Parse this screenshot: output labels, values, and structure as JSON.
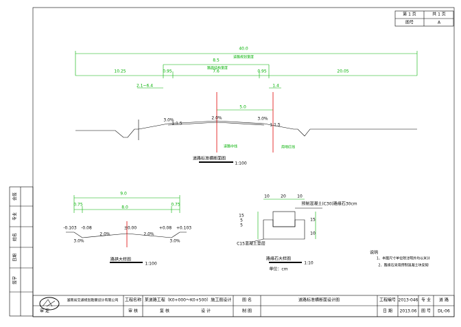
{
  "sheet": {
    "sheet_no": "第 1 页",
    "sheet_total": "共 1 页",
    "sheet_label": "图号",
    "revision": "A"
  },
  "cross_section": {
    "dimensions": [
      "40.0",
      "8.5",
      "10.25",
      "0.95",
      "7.6",
      "0.95",
      "20.05",
      "2.1~6.4",
      "1.4",
      "5.0"
    ],
    "notes": [
      "道路规划宽度",
      "路面结构宽度",
      "道路中线",
      "用地红线"
    ],
    "slopes": [
      "2.0%",
      "3.0%",
      "3.0%",
      "1:1.5",
      "1:1.5"
    ],
    "title": "道路标准横断面图",
    "scale": "1:100"
  },
  "pavement_section": {
    "dimensions": [
      "9.0",
      "0.75",
      "8.0",
      "0.75"
    ],
    "elevations": [
      "-0.103",
      "-0.08",
      "±0.00",
      "+0.08",
      "+0.103"
    ],
    "slopes": [
      "3.0%",
      "2.0%",
      "2.0%",
      "3.0%"
    ],
    "title": "路拱大样图",
    "scale": "1:100"
  },
  "curb_detail": {
    "dimensions": [
      "10",
      "20",
      "10",
      "15",
      "5",
      "5",
      "15",
      "10"
    ],
    "labels": [
      "预制混凝土(C30)路缘石30cm",
      "C15混凝土垫层"
    ],
    "title": "路缘石大样图",
    "scale": "1:10",
    "unit": "单位：cm"
  },
  "notes": {
    "title": "说明",
    "items": [
      "1、本图尺寸单位除注明外均以米计",
      "2、路缘石采用预制混凝土块安砌"
    ]
  },
  "title_block": {
    "company": "湖南省交通规划勘察设计有限公司",
    "project_label": "工程名称",
    "project": "某道路工程（K0+000～K0+500）施工图设计",
    "drawing_label": "图 名",
    "drawing": "道路标准横断面设计图",
    "number_label": "工程编号",
    "number": "2013-046",
    "discipline_label": "专 业",
    "discipline": "道 路",
    "row2": [
      "审 定",
      "审 核",
      "复 核",
      "设 计",
      "制 图",
      "日 期",
      "2013.06",
      "图 号",
      "DL-06"
    ]
  },
  "sign_strip": [
    "会签",
    "专业",
    "姓名",
    "日期",
    "签字"
  ]
}
